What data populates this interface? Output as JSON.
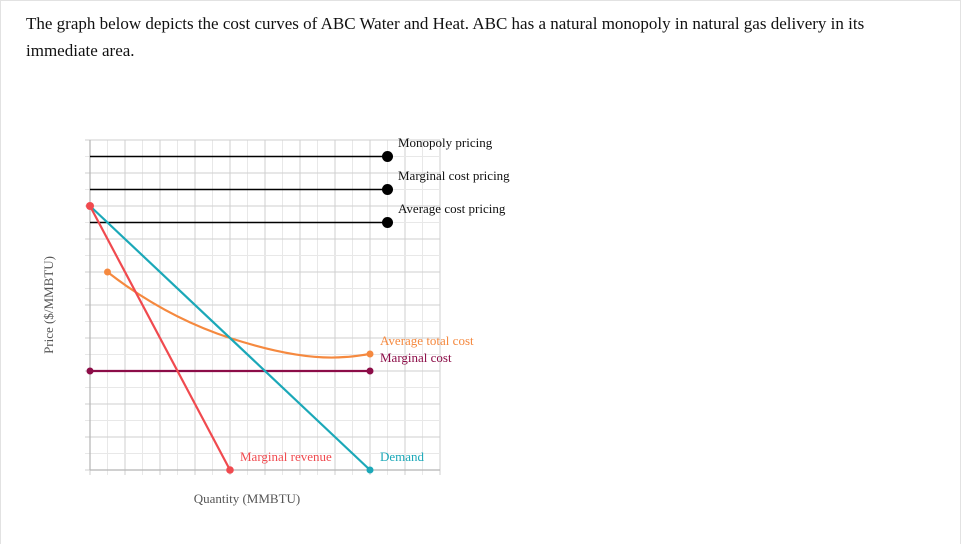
{
  "prompt": {
    "text": "The graph below depicts the cost curves of ABC Water and Heat. ABC has a natural monopoly in natural gas delivery in its immediate area."
  },
  "chart_data": {
    "type": "line",
    "title": "",
    "xlabel": "Quantity (MMBTU)",
    "ylabel": "Price ($/MMBTU)",
    "xlim": [
      0,
      20
    ],
    "ylim": [
      0,
      20
    ],
    "grid": true,
    "tick_labels_shown": false,
    "series": [
      {
        "name": "Demand",
        "color": "#1ba8b8",
        "points": [
          [
            0,
            16
          ],
          [
            16,
            0
          ]
        ]
      },
      {
        "name": "Marginal revenue",
        "color": "#f04a4f",
        "points": [
          [
            0,
            16
          ],
          [
            8,
            0
          ]
        ]
      },
      {
        "name": "Average total cost",
        "color": "#f5893f",
        "points": [
          [
            1,
            12
          ],
          [
            4,
            9.8
          ],
          [
            8,
            8
          ],
          [
            11,
            7.2
          ],
          [
            14,
            6.85
          ],
          [
            16,
            7
          ]
        ]
      },
      {
        "name": "Marginal cost",
        "color": "#8c0d48",
        "points": [
          [
            0,
            6
          ],
          [
            16,
            6
          ]
        ]
      }
    ],
    "pricing_lines": [
      {
        "name": "Monopoly pricing",
        "y": 19,
        "x_end": 17,
        "color": "#000000"
      },
      {
        "name": "Marginal cost pricing",
        "y": 17,
        "x_end": 17,
        "color": "#000000"
      },
      {
        "name": "Average cost pricing",
        "y": 15,
        "x_end": 17,
        "color": "#000000"
      }
    ]
  },
  "labels": {
    "monopoly_pricing": "Monopoly pricing",
    "mc_pricing": "Marginal cost pricing",
    "ac_pricing": "Average cost pricing",
    "atc": "Average total cost",
    "mc": "Marginal cost",
    "mr": "Marginal revenue",
    "demand": "Demand",
    "xlabel": "Quantity (MMBTU)",
    "ylabel": "Price ($/MMBTU)"
  },
  "colors": {
    "demand": "#1ba8b8",
    "mr": "#f04a4f",
    "atc": "#f5893f",
    "mc": "#8c0d48",
    "pricing": "#000000",
    "grid_major": "#cfcfcf",
    "grid_minor": "#e8e8e8",
    "axis": "#b5b5b5"
  }
}
